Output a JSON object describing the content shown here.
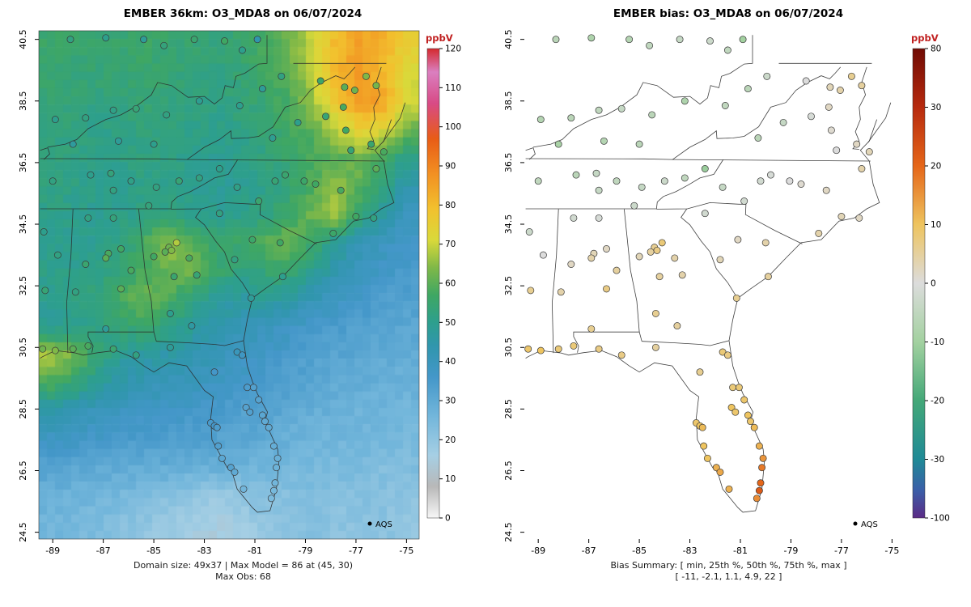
{
  "figure": {
    "panels": [
      {
        "title": "EMBER 36km: O3_MDA8 on 06/07/2024",
        "legend_label": "AQS",
        "captions": [
          "Domain size: 49x37 | Max Model = 86 at (45, 30)",
          "Max Obs: 68"
        ]
      },
      {
        "title": "EMBER bias: O3_MDA8 on 06/07/2024",
        "legend_label": "AQS",
        "captions": [
          "Bias Summary: [ min, 25th %, 50th %, 75th %, max ]",
          "[ -11,  -2.1,  1.1,  4.9,  22 ]"
        ]
      }
    ]
  },
  "chart_data": [
    {
      "type": "heatmap",
      "title": "EMBER 36km: O3_MDA8 on 06/07/2024",
      "units": "ppbV",
      "x_ticks": [
        -89,
        -87,
        -85,
        -83,
        -81,
        -79,
        -77,
        -75
      ],
      "y_ticks": [
        24.5,
        26.5,
        28.5,
        30.5,
        32.5,
        34.5,
        36.5,
        38.5,
        40.5
      ],
      "lon_range": [
        -89.55,
        -74.5
      ],
      "lat_range": [
        24.28,
        40.78
      ],
      "domain_size": "49x37",
      "max_model": 86,
      "max_model_cell": "(45, 30)",
      "max_obs": 68,
      "colorbar": {
        "min": 0,
        "max": 120,
        "ticks": [
          0,
          10,
          20,
          30,
          40,
          50,
          60,
          70,
          80,
          90,
          100,
          110,
          120
        ]
      },
      "colormap": {
        "breaks": [
          0,
          8,
          16,
          26,
          36,
          44,
          50,
          57,
          64,
          71,
          79,
          88,
          97,
          106,
          114,
          120
        ],
        "colors": [
          "#f7f7f7",
          "#b8b8b8",
          "#a6cfe4",
          "#72b6db",
          "#4497c9",
          "#3096ad",
          "#2d9f8d",
          "#3fa763",
          "#7fb848",
          "#d9d93a",
          "#f2c12e",
          "#f29022",
          "#e85c16",
          "#d84a85",
          "#da7fc0",
          "#d42a2e"
        ]
      },
      "grid": {
        "ncols": 16,
        "nrows": 18,
        "values": [
          [
            56,
            55,
            54,
            55,
            56,
            55,
            54,
            53,
            55,
            58,
            62,
            70,
            80,
            85,
            82,
            75
          ],
          [
            55,
            54,
            54,
            54,
            55,
            54,
            53,
            52,
            54,
            57,
            60,
            68,
            82,
            86,
            80,
            70
          ],
          [
            54,
            53,
            52,
            53,
            54,
            53,
            52,
            52,
            53,
            55,
            58,
            66,
            78,
            86,
            84,
            72
          ],
          [
            53,
            52,
            51,
            52,
            53,
            52,
            51,
            50,
            52,
            54,
            56,
            60,
            68,
            75,
            72,
            62
          ],
          [
            52,
            52,
            50,
            51,
            52,
            52,
            50,
            49,
            50,
            52,
            55,
            58,
            60,
            62,
            58,
            50
          ],
          [
            52,
            51,
            50,
            50,
            51,
            51,
            49,
            48,
            49,
            51,
            54,
            58,
            66,
            60,
            52,
            44
          ],
          [
            51,
            50,
            49,
            50,
            52,
            52,
            50,
            49,
            50,
            52,
            56,
            62,
            68,
            54,
            46,
            40
          ],
          [
            50,
            49,
            50,
            52,
            58,
            66,
            60,
            54,
            56,
            60,
            62,
            56,
            48,
            42,
            39,
            37
          ],
          [
            51,
            50,
            51,
            54,
            58,
            62,
            64,
            56,
            52,
            54,
            56,
            50,
            44,
            40,
            37,
            35
          ],
          [
            50,
            52,
            54,
            58,
            62,
            58,
            52,
            48,
            46,
            48,
            46,
            42,
            38,
            36,
            34,
            33
          ],
          [
            48,
            50,
            52,
            54,
            56,
            52,
            48,
            44,
            42,
            40,
            38,
            36,
            34,
            33,
            32,
            31
          ],
          [
            68,
            62,
            54,
            48,
            46,
            45,
            43,
            41,
            39,
            37,
            35,
            33,
            32,
            31,
            30,
            29
          ],
          [
            58,
            54,
            48,
            44,
            42,
            41,
            40,
            38,
            36,
            35,
            33,
            31,
            30,
            29,
            28,
            28
          ],
          [
            44,
            42,
            40,
            39,
            38,
            37,
            36,
            35,
            33,
            32,
            30,
            29,
            28,
            27,
            27,
            26
          ],
          [
            38,
            37,
            36,
            35,
            34,
            34,
            33,
            32,
            31,
            30,
            28,
            27,
            26,
            26,
            25,
            25
          ],
          [
            32,
            31,
            30,
            30,
            29,
            29,
            28,
            28,
            27,
            26,
            26,
            25,
            24,
            24,
            23,
            23
          ],
          [
            28,
            27,
            26,
            25,
            24,
            22,
            20,
            18,
            20,
            22,
            22,
            23,
            22,
            22,
            22,
            21
          ],
          [
            26,
            25,
            24,
            22,
            20,
            18,
            16,
            15,
            17,
            20,
            21,
            22,
            21,
            21,
            21,
            20
          ]
        ]
      },
      "stations_columns": [
        "lon",
        "lat",
        "obs_ppbV",
        "bias_ppbV"
      ],
      "stations": [
        [
          -88.3,
          40.5,
          52,
          -6
        ],
        [
          -86.9,
          40.55,
          50,
          -8
        ],
        [
          -85.4,
          40.5,
          48,
          -7
        ],
        [
          -84.6,
          40.3,
          53,
          -5
        ],
        [
          -83.4,
          40.5,
          55,
          -4
        ],
        [
          -82.2,
          40.45,
          57,
          -3
        ],
        [
          -80.9,
          40.5,
          44,
          -10
        ],
        [
          -81.5,
          40.15,
          50,
          -5
        ],
        [
          -88.9,
          37.9,
          50,
          -7
        ],
        [
          -87.7,
          37.95,
          52,
          -6
        ],
        [
          -86.6,
          38.2,
          51,
          -5
        ],
        [
          -85.7,
          38.25,
          54,
          -4
        ],
        [
          -84.5,
          38.05,
          52,
          -6
        ],
        [
          -83.2,
          38.5,
          49,
          -8
        ],
        [
          -85.0,
          37.1,
          50,
          -6
        ],
        [
          -86.4,
          37.2,
          48,
          -7
        ],
        [
          -88.2,
          37.1,
          47,
          -9
        ],
        [
          -81.6,
          38.35,
          50,
          -5
        ],
        [
          -80.7,
          38.9,
          48,
          -6
        ],
        [
          -79.95,
          39.3,
          52,
          -3
        ],
        [
          -78.4,
          39.15,
          56,
          0
        ],
        [
          -77.45,
          38.95,
          60,
          3
        ],
        [
          -77.05,
          38.85,
          62,
          4
        ],
        [
          -76.6,
          39.3,
          64,
          6
        ],
        [
          -76.2,
          39.0,
          63,
          5
        ],
        [
          -77.5,
          38.3,
          58,
          2
        ],
        [
          -78.2,
          38.0,
          54,
          -1
        ],
        [
          -79.3,
          37.8,
          50,
          -4
        ],
        [
          -80.3,
          37.3,
          49,
          -6
        ],
        [
          -77.4,
          37.55,
          57,
          1
        ],
        [
          -76.4,
          37.1,
          55,
          2
        ],
        [
          -77.2,
          36.9,
          54,
          0
        ],
        [
          -89.0,
          35.9,
          52,
          -5
        ],
        [
          -87.5,
          36.1,
          50,
          -6
        ],
        [
          -86.7,
          36.15,
          53,
          -4
        ],
        [
          -85.9,
          35.9,
          51,
          -5
        ],
        [
          -84.9,
          35.7,
          52,
          -4
        ],
        [
          -84.0,
          35.9,
          54,
          -3
        ],
        [
          -83.2,
          36.0,
          52,
          -5
        ],
        [
          -82.4,
          36.3,
          50,
          -11
        ],
        [
          -86.6,
          35.6,
          52,
          -4
        ],
        [
          -85.2,
          35.1,
          53,
          -3
        ],
        [
          -81.7,
          35.7,
          51,
          -4
        ],
        [
          -80.85,
          35.25,
          55,
          -2
        ],
        [
          -80.2,
          35.9,
          54,
          -2
        ],
        [
          -79.8,
          36.1,
          55,
          -1
        ],
        [
          -79.05,
          35.9,
          56,
          0
        ],
        [
          -78.6,
          35.8,
          57,
          1
        ],
        [
          -77.6,
          35.6,
          58,
          2
        ],
        [
          -76.2,
          36.3,
          60,
          4
        ],
        [
          -75.9,
          36.85,
          58,
          3
        ],
        [
          -77.0,
          34.75,
          57,
          3
        ],
        [
          -77.9,
          34.2,
          56,
          4
        ],
        [
          -76.3,
          34.7,
          52,
          2
        ],
        [
          -82.4,
          34.85,
          52,
          -2
        ],
        [
          -81.1,
          34.0,
          56,
          2
        ],
        [
          -80.0,
          33.9,
          57,
          4
        ],
        [
          -79.9,
          32.8,
          50,
          5
        ],
        [
          -81.15,
          32.1,
          48,
          6
        ],
        [
          -84.4,
          33.75,
          62,
          6
        ],
        [
          -84.3,
          33.65,
          64,
          7
        ],
        [
          -84.55,
          33.6,
          60,
          5
        ],
        [
          -84.1,
          33.9,
          68,
          8
        ],
        [
          -83.6,
          33.4,
          58,
          4
        ],
        [
          -85.0,
          33.45,
          57,
          3
        ],
        [
          -84.2,
          32.8,
          55,
          5
        ],
        [
          -83.3,
          32.85,
          54,
          4
        ],
        [
          -81.8,
          33.35,
          52,
          3
        ],
        [
          -84.35,
          31.6,
          50,
          6
        ],
        [
          -83.5,
          31.2,
          46,
          5
        ],
        [
          -86.8,
          33.55,
          58,
          3
        ],
        [
          -86.9,
          33.4,
          60,
          4
        ],
        [
          -86.3,
          33.7,
          57,
          2
        ],
        [
          -87.6,
          34.7,
          52,
          -2
        ],
        [
          -86.6,
          34.7,
          53,
          -1
        ],
        [
          -85.9,
          33.0,
          58,
          5
        ],
        [
          -86.3,
          32.4,
          60,
          7
        ],
        [
          -87.7,
          33.2,
          55,
          2
        ],
        [
          -88.1,
          32.3,
          52,
          4
        ],
        [
          -86.9,
          31.1,
          48,
          6
        ],
        [
          -89.35,
          34.25,
          50,
          -3
        ],
        [
          -88.8,
          33.5,
          52,
          0
        ],
        [
          -89.3,
          32.35,
          54,
          6
        ],
        [
          -89.4,
          30.45,
          62,
          9
        ],
        [
          -88.9,
          30.4,
          64,
          10
        ],
        [
          -88.2,
          30.45,
          60,
          8
        ],
        [
          -87.6,
          30.55,
          58,
          8
        ],
        [
          -86.6,
          30.45,
          55,
          7
        ],
        [
          -85.7,
          30.25,
          52,
          7
        ],
        [
          -84.35,
          30.5,
          48,
          5
        ],
        [
          -81.7,
          30.35,
          40,
          8
        ],
        [
          -81.5,
          30.25,
          38,
          7
        ],
        [
          -82.6,
          29.7,
          36,
          6
        ],
        [
          -81.3,
          29.2,
          34,
          8
        ],
        [
          -82.75,
          28.05,
          35,
          9
        ],
        [
          -82.6,
          27.95,
          36,
          10
        ],
        [
          -82.5,
          27.9,
          34,
          11
        ],
        [
          -82.45,
          27.3,
          33,
          10
        ],
        [
          -82.3,
          26.9,
          31,
          10
        ],
        [
          -81.95,
          26.6,
          32,
          12
        ],
        [
          -81.8,
          26.45,
          30,
          13
        ],
        [
          -81.05,
          29.2,
          33,
          8
        ],
        [
          -80.85,
          28.8,
          32,
          9
        ],
        [
          -80.7,
          28.3,
          31,
          10
        ],
        [
          -80.6,
          28.1,
          30,
          9
        ],
        [
          -80.45,
          27.9,
          30,
          11
        ],
        [
          -80.25,
          27.3,
          29,
          12
        ],
        [
          -80.1,
          26.9,
          28,
          15
        ],
        [
          -80.15,
          26.6,
          27,
          18
        ],
        [
          -80.2,
          26.1,
          26,
          20
        ],
        [
          -80.25,
          25.85,
          25,
          22
        ],
        [
          -80.35,
          25.6,
          24,
          16
        ],
        [
          -81.45,
          25.9,
          26,
          12
        ],
        [
          -81.35,
          28.55,
          32,
          10
        ],
        [
          -81.2,
          28.4,
          33,
          9
        ]
      ]
    },
    {
      "type": "scatter",
      "title": "EMBER bias: O3_MDA8 on 06/07/2024",
      "units": "ppbV",
      "colorbar": {
        "ticks": [
          80,
          30,
          20,
          10,
          0,
          -10,
          -20,
          -30,
          -100
        ]
      },
      "colormap": {
        "breaks": [
          -100,
          -30,
          -20,
          -10,
          0,
          10,
          20,
          30,
          80
        ],
        "colors": [
          "#5b2b86",
          "#1f8a96",
          "#44a878",
          "#a3d1a0",
          "#dcdcdc",
          "#eec45f",
          "#e56619",
          "#b72a0e",
          "#700b04"
        ]
      },
      "bias_summary": {
        "header": "[ min, 25th %, 50th %, 75th %, max ]",
        "values": [
          -11,
          -2.1,
          1.1,
          4.9,
          22
        ]
      },
      "stations_source": "chart_data.0.stations"
    }
  ]
}
